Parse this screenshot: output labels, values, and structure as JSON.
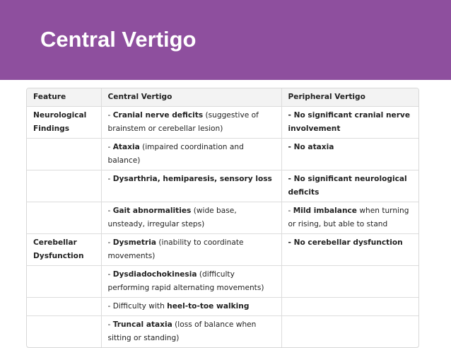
{
  "header": {
    "title": "Central Vertigo"
  },
  "table": {
    "columns": [
      "Feature",
      "Central Vertigo",
      "Peripheral Vertigo"
    ],
    "rows": [
      [
        [
          {
            "text": "Neurological Findings",
            "bold": true
          }
        ],
        [
          {
            "text": "- ",
            "bold": false
          },
          {
            "text": "Cranial nerve deficits",
            "bold": true
          },
          {
            "text": " (suggestive of brainstem or cerebellar lesion)",
            "bold": false
          }
        ],
        [
          {
            "text": "- No significant cranial nerve involvement",
            "bold": true
          }
        ]
      ],
      [
        [],
        [
          {
            "text": "- ",
            "bold": false
          },
          {
            "text": "Ataxia",
            "bold": true
          },
          {
            "text": " (impaired coordination and balance)",
            "bold": false
          }
        ],
        [
          {
            "text": "- No ataxia",
            "bold": true
          }
        ]
      ],
      [
        [],
        [
          {
            "text": "- ",
            "bold": false
          },
          {
            "text": "Dysarthria, hemiparesis, sensory loss",
            "bold": true
          }
        ],
        [
          {
            "text": "- No significant neurological deficits",
            "bold": true
          }
        ]
      ],
      [
        [],
        [
          {
            "text": "- ",
            "bold": false
          },
          {
            "text": "Gait abnormalities",
            "bold": true
          },
          {
            "text": " (wide base, unsteady, irregular steps)",
            "bold": false
          }
        ],
        [
          {
            "text": "- ",
            "bold": false
          },
          {
            "text": "Mild imbalance",
            "bold": true
          },
          {
            "text": " when turning or rising, but able to stand",
            "bold": false
          }
        ]
      ],
      [
        [
          {
            "text": "Cerebellar Dysfunction",
            "bold": true
          }
        ],
        [
          {
            "text": "- ",
            "bold": false
          },
          {
            "text": "Dysmetria",
            "bold": true
          },
          {
            "text": " (inability to coordinate movements)",
            "bold": false
          }
        ],
        [
          {
            "text": "- No cerebellar dysfunction",
            "bold": true
          }
        ]
      ],
      [
        [],
        [
          {
            "text": "- ",
            "bold": false
          },
          {
            "text": "Dysdiadochokinesia",
            "bold": true
          },
          {
            "text": " (difficulty performing rapid alternating movements)",
            "bold": false
          }
        ],
        []
      ],
      [
        [],
        [
          {
            "text": "- Difficulty with ",
            "bold": false
          },
          {
            "text": "heel-to-toe walking",
            "bold": true
          }
        ],
        []
      ],
      [
        [],
        [
          {
            "text": "- ",
            "bold": false
          },
          {
            "text": "Truncal ataxia",
            "bold": true
          },
          {
            "text": " (loss of balance when sitting or standing)",
            "bold": false
          }
        ],
        []
      ]
    ]
  }
}
